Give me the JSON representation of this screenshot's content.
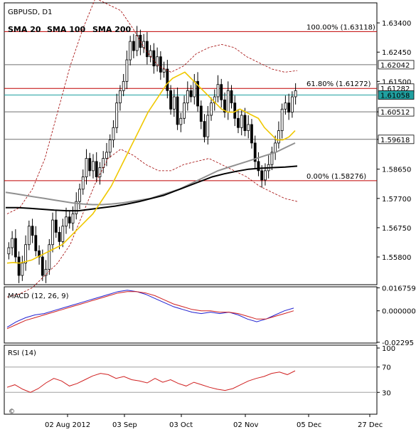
{
  "header": {
    "symbol": "GBPUSD, D1",
    "legend": [
      {
        "label": "SMA 20",
        "color": "#f0c800"
      },
      {
        "label": "SMA 100",
        "color": "#909090"
      },
      {
        "label": "SMA 200",
        "color": "#000000"
      }
    ]
  },
  "colors": {
    "up": "#2e7d32",
    "down": "#b71c1c",
    "sma20": "#f0c800",
    "sma100": "#909090",
    "sma200": "#000000",
    "fib": "#c00000",
    "bands": "#a00000",
    "macd": "#2020d0",
    "signal": "#d02020",
    "rsi": "#d02020"
  },
  "chart_data": [
    {
      "type": "candlestick",
      "title": "GBPUSD, D1",
      "ylim": [
        1.549,
        1.6405
      ],
      "yticks": [
        "1.63400",
        "1.62450",
        "1.61500",
        "1.60512",
        "1.59618",
        "1.58650",
        "1.57700",
        "1.56750",
        "1.55800"
      ],
      "price_labels": [
        {
          "text": "1.62042",
          "value": 1.62042,
          "boxed": true
        },
        {
          "text": "1.61282",
          "value": 1.61282,
          "boxed": true
        },
        {
          "text": "1.61058",
          "value": 1.61058,
          "boxed": true,
          "teal": true
        },
        {
          "text": "1.60512",
          "value": 1.60512,
          "boxed": true
        },
        {
          "text": "1.59618",
          "value": 1.59618,
          "boxed": true
        }
      ],
      "hlines": [
        {
          "value": 1.63118,
          "color": "fib",
          "label": "100.00% (1.63118)"
        },
        {
          "value": 1.62042,
          "color": "grey"
        },
        {
          "value": 1.61272,
          "color": "fib",
          "label": "61.80% (1.61272)"
        },
        {
          "value": 1.61058,
          "color": "teal"
        },
        {
          "value": 1.60512,
          "color": "grey"
        },
        {
          "value": 1.59618,
          "color": "grey"
        },
        {
          "value": 1.58276,
          "color": "fib",
          "label": "0.00% (1.58276)"
        }
      ],
      "closes": [
        1.561,
        1.564,
        1.558,
        1.552,
        1.556,
        1.562,
        1.568,
        1.565,
        1.56,
        1.558,
        1.552,
        1.554,
        1.562,
        1.57,
        1.566,
        1.563,
        1.568,
        1.571,
        1.569,
        1.572,
        1.576,
        1.58,
        1.584,
        1.59,
        1.586,
        1.589,
        1.584,
        1.587,
        1.59,
        1.592,
        1.596,
        1.6,
        1.608,
        1.612,
        1.615,
        1.622,
        1.628,
        1.625,
        1.63,
        1.626,
        1.628,
        1.623,
        1.625,
        1.62,
        1.623,
        1.618,
        1.619,
        1.612,
        1.606,
        1.61,
        1.601,
        1.603,
        1.608,
        1.612,
        1.61,
        1.615,
        1.607,
        1.602,
        1.597,
        1.604,
        1.608,
        1.61,
        1.614,
        1.609,
        1.605,
        1.612,
        1.608,
        1.603,
        1.6,
        1.604,
        1.599,
        1.601,
        1.595,
        1.589,
        1.586,
        1.583,
        1.586,
        1.588,
        1.592,
        1.595,
        1.599,
        1.606,
        1.608,
        1.605,
        1.61,
        1.612
      ],
      "sma20": [
        1.556,
        1.5562,
        1.556,
        1.5565,
        1.557,
        1.558,
        1.559,
        1.56,
        1.561,
        1.562,
        1.564,
        1.566,
        1.568,
        1.57,
        1.572,
        1.575,
        1.578,
        1.581,
        1.585,
        1.589,
        1.593,
        1.597,
        1.601,
        1.605,
        1.608,
        1.611,
        1.614,
        1.616,
        1.617,
        1.618,
        1.616,
        1.614,
        1.612,
        1.61,
        1.608,
        1.606,
        1.605,
        1.605,
        1.606,
        1.605,
        1.604,
        1.603,
        1.6,
        1.598,
        1.596,
        1.596,
        1.597,
        1.599
      ],
      "sma100": [
        1.579,
        1.5785,
        1.578,
        1.5775,
        1.577,
        1.5765,
        1.576,
        1.5755,
        1.5752,
        1.575,
        1.575,
        1.5752,
        1.5755,
        1.576,
        1.5765,
        1.577,
        1.578,
        1.579,
        1.58,
        1.5815,
        1.583,
        1.5845,
        1.586,
        1.587,
        1.588,
        1.589,
        1.59,
        1.591,
        1.592,
        1.5935,
        1.595
      ],
      "sma200": [
        1.574,
        1.574,
        1.5738,
        1.5735,
        1.5732,
        1.573,
        1.573,
        1.5735,
        1.574,
        1.5745,
        1.5752,
        1.576,
        1.577,
        1.578,
        1.5795,
        1.581,
        1.5825,
        1.584,
        1.585,
        1.5858,
        1.5865,
        1.5868,
        1.587,
        1.5872,
        1.5875
      ],
      "band_upper": [
        1.572,
        1.574,
        1.58,
        1.59,
        1.605,
        1.62,
        1.632,
        1.642,
        1.64,
        1.638,
        1.632,
        1.625,
        1.62,
        1.618,
        1.62,
        1.624,
        1.626,
        1.627,
        1.626,
        1.623,
        1.621,
        1.619,
        1.618,
        1.6185
      ],
      "band_lower": [
        1.545,
        1.546,
        1.548,
        1.552,
        1.556,
        1.562,
        1.572,
        1.582,
        1.59,
        1.593,
        1.591,
        1.588,
        1.586,
        1.586,
        1.588,
        1.589,
        1.59,
        1.588,
        1.586,
        1.584,
        1.581,
        1.579,
        1.577,
        1.576
      ]
    },
    {
      "type": "line",
      "title": "MACD (12, 26, 9)",
      "ylim": [
        -0.0235,
        0.0175
      ],
      "yticks": [
        "0.016759",
        "0.000000",
        "-0.02295"
      ],
      "series": [
        {
          "values": [
            -0.012,
            -0.008,
            -0.005,
            -0.003,
            -0.002,
            0.0,
            0.002,
            0.004,
            0.006,
            0.008,
            0.01,
            0.012,
            0.014,
            0.015,
            0.014,
            0.012,
            0.009,
            0.006,
            0.003,
            0.001,
            -0.001,
            -0.002,
            -0.001,
            -0.002,
            -0.001,
            -0.003,
            -0.006,
            -0.008,
            -0.006,
            -0.003,
            0.0,
            0.002
          ]
        },
        {
          "values": [
            -0.013,
            -0.01,
            -0.007,
            -0.005,
            -0.003,
            -0.001,
            0.001,
            0.003,
            0.005,
            0.007,
            0.009,
            0.011,
            0.013,
            0.014,
            0.014,
            0.013,
            0.011,
            0.008,
            0.005,
            0.003,
            0.001,
            0.0,
            0.0,
            -0.001,
            -0.001,
            -0.002,
            -0.004,
            -0.006,
            -0.006,
            -0.004,
            -0.002,
            0.0
          ]
        }
      ]
    },
    {
      "type": "line",
      "title": "RSI (14)",
      "ylim": [
        0,
        100
      ],
      "yticks": [
        "100",
        "70",
        "30",
        "0"
      ],
      "series": [
        {
          "values": [
            38,
            42,
            35,
            30,
            36,
            45,
            52,
            48,
            40,
            44,
            50,
            56,
            60,
            58,
            52,
            55,
            50,
            48,
            45,
            52,
            46,
            50,
            44,
            40,
            46,
            42,
            38,
            35,
            33,
            36,
            42,
            48,
            52,
            55,
            60,
            62,
            58,
            64
          ]
        }
      ]
    }
  ],
  "x_axis": {
    "labels": [
      "02 Aug 2012",
      "03 Sep",
      "03 Oct",
      "02 Nov",
      "05 Dec",
      "27 Dec"
    ]
  },
  "footer": {
    "copyright_symbol": "©"
  }
}
